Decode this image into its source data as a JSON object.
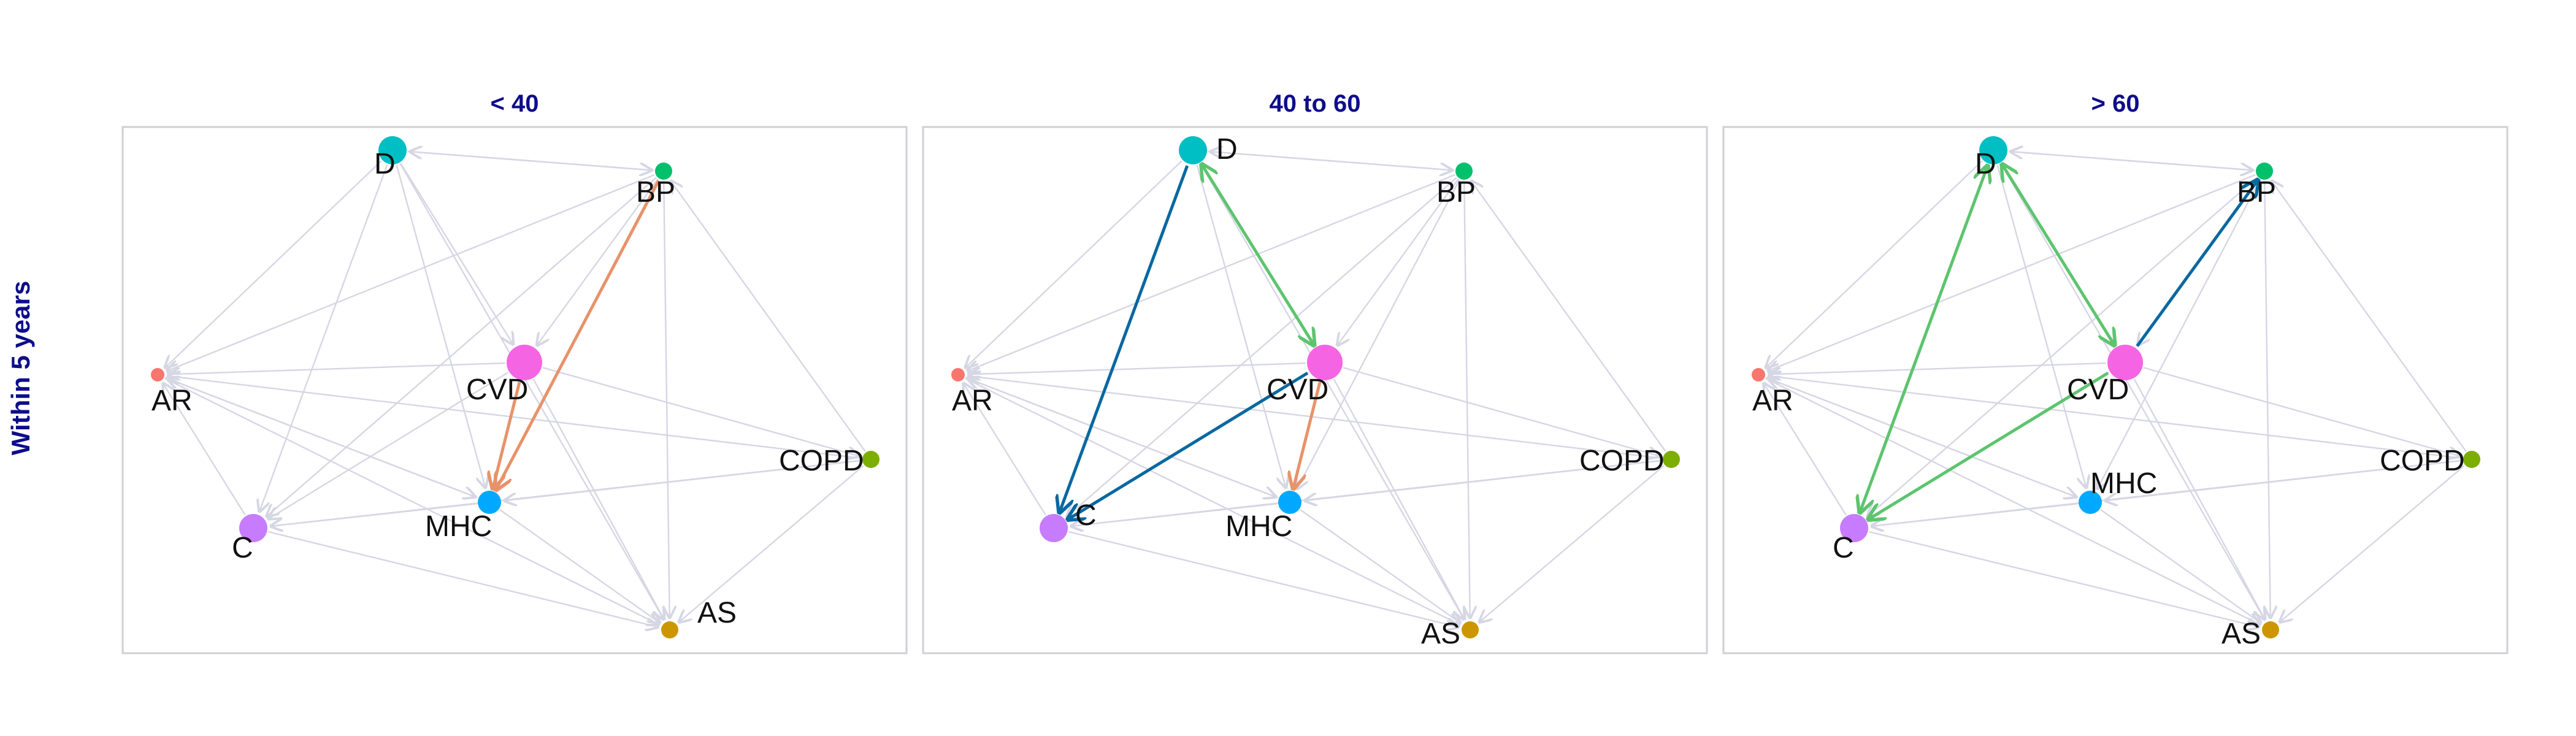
{
  "figure": {
    "row_label": "Within 5 years",
    "panels": [
      {
        "title": "< 40",
        "nodes": [
          {
            "id": "D",
            "label": "D",
            "color": "#00BFC4",
            "size": "large"
          },
          {
            "id": "BP",
            "label": "BP",
            "color": "#00C06B",
            "size": "small"
          },
          {
            "id": "AR",
            "label": "AR",
            "color": "#F8766D",
            "size": "tiny"
          },
          {
            "id": "CVD",
            "label": "CVD",
            "color": "#F564E3",
            "size": "xlarge"
          },
          {
            "id": "COPD",
            "label": "COPD",
            "color": "#7CAE00",
            "size": "small"
          },
          {
            "id": "C",
            "label": "C",
            "color": "#C77CFF",
            "size": "large"
          },
          {
            "id": "MHC",
            "label": "MHC",
            "color": "#00A9FF",
            "size": "medium"
          },
          {
            "id": "AS",
            "label": "AS",
            "color": "#CD9600",
            "size": "small"
          }
        ],
        "highlighted_edges": [
          {
            "from": "BP",
            "to": "MHC",
            "color": "#E8926A"
          },
          {
            "from": "CVD",
            "to": "MHC",
            "color": "#E8926A"
          }
        ]
      },
      {
        "title": "40 to 60",
        "nodes": [
          {
            "id": "D",
            "label": "D",
            "color": "#00BFC4",
            "size": "large"
          },
          {
            "id": "BP",
            "label": "BP",
            "color": "#00C06B",
            "size": "small"
          },
          {
            "id": "AR",
            "label": "AR",
            "color": "#F8766D",
            "size": "tiny"
          },
          {
            "id": "CVD",
            "label": "CVD",
            "color": "#F564E3",
            "size": "xlarge"
          },
          {
            "id": "COPD",
            "label": "COPD",
            "color": "#7CAE00",
            "size": "small"
          },
          {
            "id": "C",
            "label": "C",
            "color": "#C77CFF",
            "size": "large"
          },
          {
            "id": "MHC",
            "label": "MHC",
            "color": "#00A9FF",
            "size": "medium"
          },
          {
            "id": "AS",
            "label": "AS",
            "color": "#CD9600",
            "size": "small"
          }
        ],
        "highlighted_edges": [
          {
            "from": "D",
            "to": "C",
            "color": "#0868A0",
            "bidirectional": false
          },
          {
            "from": "CVD",
            "to": "C",
            "color": "#0868A0",
            "bidirectional": false
          },
          {
            "from": "D",
            "to": "CVD",
            "color": "#5DC46E",
            "bidirectional": true
          },
          {
            "from": "CVD",
            "to": "MHC",
            "color": "#E8926A",
            "bidirectional": false
          }
        ]
      },
      {
        "title": "> 60",
        "nodes": [
          {
            "id": "D",
            "label": "D",
            "color": "#00BFC4",
            "size": "large"
          },
          {
            "id": "BP",
            "label": "BP",
            "color": "#00C06B",
            "size": "small"
          },
          {
            "id": "AR",
            "label": "AR",
            "color": "#F8766D",
            "size": "tiny"
          },
          {
            "id": "CVD",
            "label": "CVD",
            "color": "#F564E3",
            "size": "xlarge"
          },
          {
            "id": "COPD",
            "label": "COPD",
            "color": "#7CAE00",
            "size": "small"
          },
          {
            "id": "C",
            "label": "C",
            "color": "#C77CFF",
            "size": "large"
          },
          {
            "id": "MHC",
            "label": "MHC",
            "color": "#00A9FF",
            "size": "medium"
          },
          {
            "id": "AS",
            "label": "AS",
            "color": "#CD9600",
            "size": "small"
          }
        ],
        "highlighted_edges": [
          {
            "from": "D",
            "to": "C",
            "color": "#5DC46E",
            "bidirectional": true
          },
          {
            "from": "D",
            "to": "CVD",
            "color": "#5DC46E",
            "bidirectional": true
          },
          {
            "from": "CVD",
            "to": "C",
            "color": "#5DC46E",
            "bidirectional": false
          },
          {
            "from": "CVD",
            "to": "BP",
            "color": "#0868A0",
            "bidirectional": false
          }
        ]
      }
    ],
    "background_edge_color": "#D6D6E4"
  }
}
